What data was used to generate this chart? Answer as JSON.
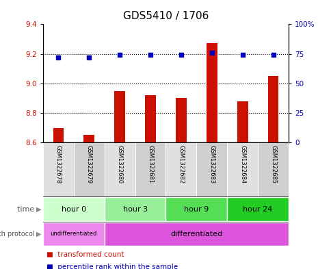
{
  "title": "GDS5410 / 1706",
  "samples": [
    "GSM1322678",
    "GSM1322679",
    "GSM1322680",
    "GSM1322681",
    "GSM1322682",
    "GSM1322683",
    "GSM1322684",
    "GSM1322685"
  ],
  "transformed_count": [
    8.7,
    8.65,
    8.95,
    8.92,
    8.9,
    9.27,
    8.88,
    9.05
  ],
  "percentile_rank": [
    72,
    72,
    74,
    74,
    74,
    76,
    74,
    74
  ],
  "ylim_left": [
    8.6,
    9.4
  ],
  "ylim_right": [
    0,
    100
  ],
  "yticks_left": [
    8.6,
    8.8,
    9.0,
    9.2,
    9.4
  ],
  "yticks_right": [
    0,
    25,
    50,
    75,
    100
  ],
  "ytick_labels_right": [
    "0",
    "25",
    "50",
    "75",
    "100%"
  ],
  "grid_lines": [
    8.8,
    9.0,
    9.2
  ],
  "bar_color": "#cc1100",
  "dot_color": "#0000bb",
  "bar_width": 0.35,
  "time_groups": [
    {
      "label": "hour 0",
      "start": 0,
      "end": 2,
      "color": "#ccffcc"
    },
    {
      "label": "hour 3",
      "start": 2,
      "end": 4,
      "color": "#99ee99"
    },
    {
      "label": "hour 9",
      "start": 4,
      "end": 6,
      "color": "#55dd55"
    },
    {
      "label": "hour 24",
      "start": 6,
      "end": 8,
      "color": "#22cc22"
    }
  ],
  "growth_protocol_groups": [
    {
      "label": "undifferentiated",
      "start": 0,
      "end": 2,
      "color": "#ee88ee"
    },
    {
      "label": "differentiated",
      "start": 2,
      "end": 8,
      "color": "#dd55dd"
    }
  ],
  "time_label": "time",
  "growth_label": "growth protocol",
  "legend_items": [
    {
      "label": "transformed count",
      "color": "#cc1100"
    },
    {
      "label": "percentile rank within the sample",
      "color": "#0000bb"
    }
  ],
  "background_color": "#ffffff",
  "title_fontsize": 11,
  "tick_fontsize": 7.5,
  "sample_fontsize": 6,
  "row_fontsize": 8
}
